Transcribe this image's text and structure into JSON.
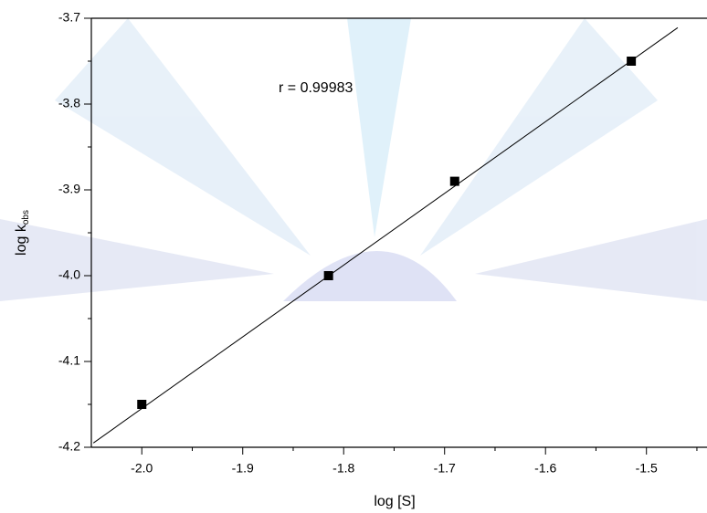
{
  "chart_data": {
    "type": "scatter",
    "xlabel": "log [S]",
    "ylabel": {
      "text": "log k",
      "subscript": "obs"
    },
    "annotation": "r = 0.99983",
    "x": [
      -2.0,
      -1.815,
      -1.69,
      -1.515
    ],
    "values": [
      -4.15,
      -4.0,
      -3.89,
      -3.75
    ],
    "color": "#000000",
    "fit_line": {
      "x": [
        -2.048,
        -1.469
      ],
      "y": [
        -4.195,
        -3.711
      ],
      "color": "#000000"
    },
    "xlim": [
      -2.05,
      -1.44
    ],
    "ylim": [
      -4.2,
      -3.7
    ],
    "xticks": [
      {
        "value": -2.0,
        "label": "-2.0"
      },
      -1.9,
      -1.8,
      -1.7,
      -1.6,
      -1.5
    ],
    "yticks": [
      {
        "value": -4.2,
        "label": "-4.2"
      },
      -4.1,
      {
        "value": -4.0,
        "label": "-4.0"
      },
      -3.9,
      -3.8,
      -3.7
    ]
  }
}
